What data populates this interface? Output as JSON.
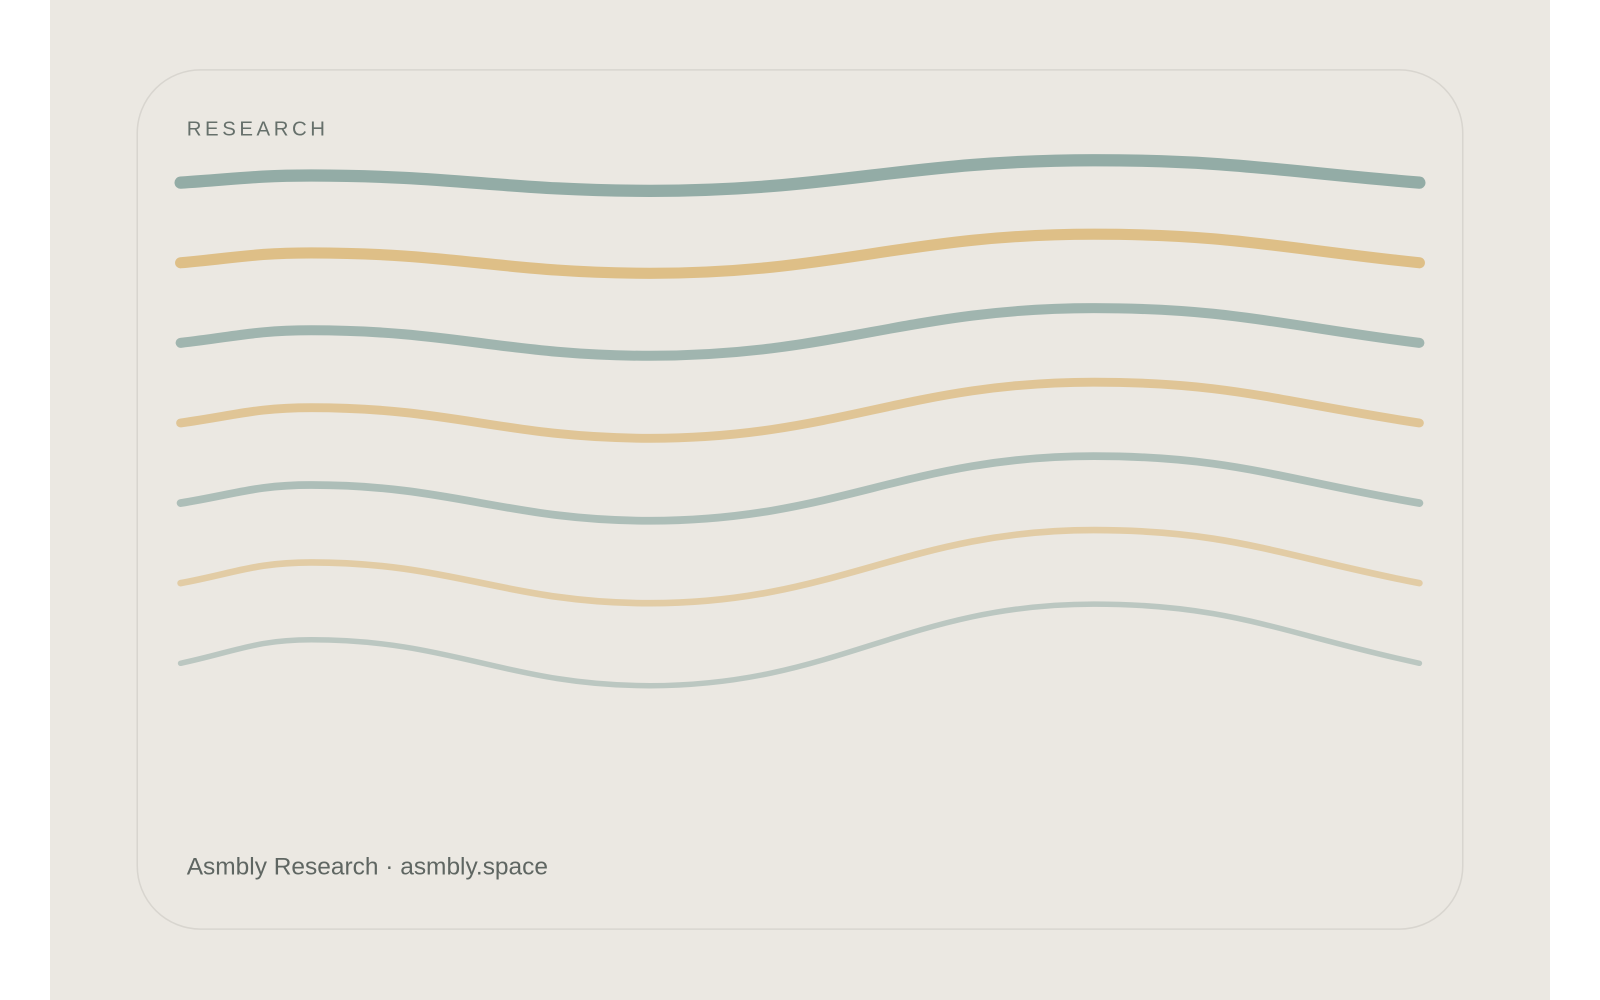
{
  "header": {
    "label": "RESEARCH"
  },
  "footer": {
    "text": "Asmbly Research · asmbly.space"
  }
}
